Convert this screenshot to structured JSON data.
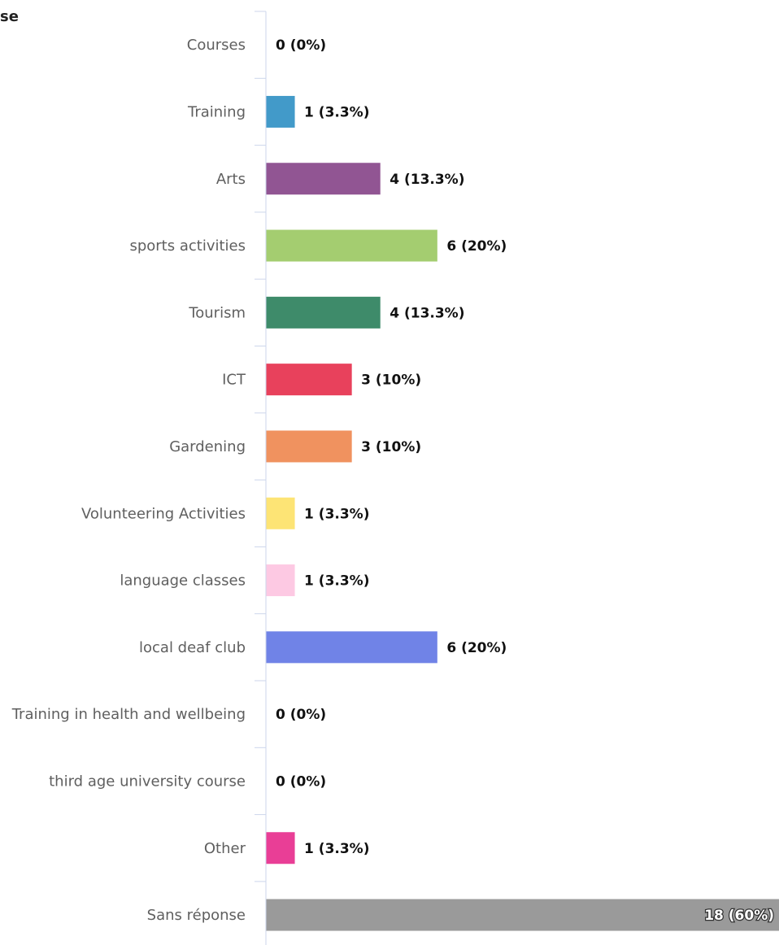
{
  "chart_data": {
    "type": "bar",
    "orientation": "horizontal",
    "title": "se",
    "categories": [
      "Courses",
      "Training",
      "Arts",
      "sports activities",
      "Tourism",
      "ICT",
      "Gardening",
      "Volunteering Activities",
      "language classes",
      "local deaf club",
      "Training in health and wellbeing",
      "third age university course",
      "Other",
      "Sans réponse"
    ],
    "values": [
      0,
      1,
      4,
      6,
      4,
      3,
      3,
      1,
      1,
      6,
      0,
      0,
      1,
      18
    ],
    "value_labels": [
      "0 (0%)",
      "1 (3.3%)",
      "4 (13.3%)",
      "6 (20%)",
      "4 (13.3%)",
      "3 (10%)",
      "3 (10%)",
      "1 (3.3%)",
      "1 (3.3%)",
      "6 (20%)",
      "0 (0%)",
      "0 (0%)",
      "1 (3.3%)",
      "18 (60%)"
    ],
    "colors": [
      "#7cb5ec",
      "#429ac9",
      "#915593",
      "#a4cd70",
      "#3e8b6a",
      "#e8415c",
      "#f0925f",
      "#fde475",
      "#fdc9e3",
      "#7083e7",
      "#5c5c5c",
      "#8a8a8a",
      "#e93e96",
      "#9a9a9a"
    ],
    "xlim": [
      0,
      18
    ],
    "grid": false,
    "legend": "none"
  }
}
